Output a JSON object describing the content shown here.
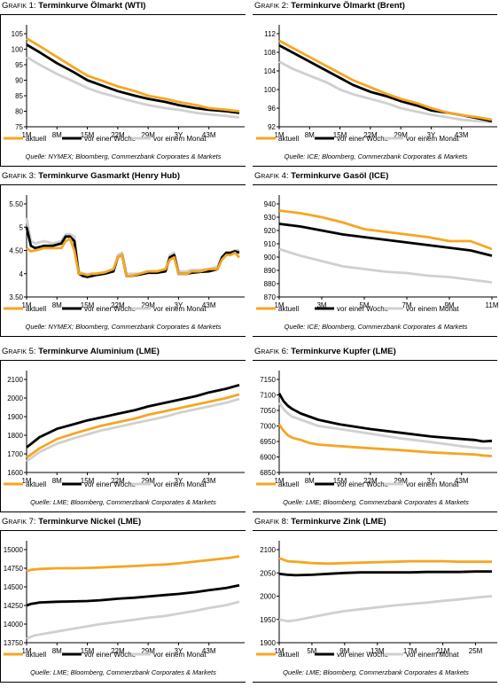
{
  "colors": {
    "aktuell": "#F5A623",
    "week": "#000000",
    "month": "#D0D0D0"
  },
  "legend": {
    "s1": "aktuell",
    "s2": "vor einer Woche",
    "s3": "vor einem Monat"
  },
  "panels": [
    {
      "prefix": "Grafik 1:",
      "title": "Terminkurve Ölmarkt (WTI)",
      "source": "Quelle: NYMEX; Bloomberg, Commerzbank Corporates & Markets"
    },
    {
      "prefix": "Grafik 2:",
      "title": "Terminkurve Ölmarkt (Brent)",
      "source": "Quelle: ICE; Bloomberg, Commerzbank Corporates & Markets"
    },
    {
      "prefix": "Grafik 3:",
      "title": "Terminkurve Gasmarkt (Henry Hub)",
      "source": "Quelle: NYMEX; Bloomberg, Commerzbank Corporates & Markets"
    },
    {
      "prefix": "Grafik 4:",
      "title": "Terminkurve Gasöl (ICE)",
      "source": "Quelle: ICE; Bloomberg, Commerzbank Corporates & Markets"
    },
    {
      "prefix": "Grafik 5:",
      "title": "Terminkurve Aluminium (LME)",
      "source": "Quelle: LME; Bloomberg, Commerzbank Corporates & Markets"
    },
    {
      "prefix": "Grafik 6:",
      "title": "Terminkurve Kupfer (LME)",
      "source": "Quelle: LME; Bloomberg, Commerzbank Corporates & Markets"
    },
    {
      "prefix": "Grafik 7:",
      "title": "Terminkurve Nickel (LME)",
      "source": "Quelle: LME; Bloomberg, Commerzbank Corporates & Markets"
    },
    {
      "prefix": "Grafik 8:",
      "title": "Terminkurve Zink (LME)",
      "source": "Quelle: LME; Bloomberg, Commerzbank Corporates & Markets"
    }
  ],
  "chart_data": [
    {
      "type": "line",
      "title": "Terminkurve Ölmarkt (WTI)",
      "ylim": [
        75,
        105
      ],
      "yticks": [
        75,
        80,
        85,
        90,
        95,
        100,
        105
      ],
      "x": [
        1,
        4,
        8,
        12,
        15,
        18,
        22,
        26,
        29,
        33,
        36,
        40,
        43,
        47,
        50
      ],
      "xticks": [
        {
          "x": 1,
          "label": "1M"
        },
        {
          "x": 8,
          "label": "8M"
        },
        {
          "x": 15,
          "label": "15M"
        },
        {
          "x": 22,
          "label": "22M"
        },
        {
          "x": 29,
          "label": "29M"
        },
        {
          "x": 36,
          "label": "3Y"
        },
        {
          "x": 43,
          "label": "43M"
        }
      ],
      "series": [
        {
          "name": "aktuell",
          "values": [
            103.5,
            101,
            97.5,
            94,
            91.5,
            90,
            88,
            86.5,
            85,
            84,
            83,
            82,
            81,
            80.5,
            80
          ]
        },
        {
          "name": "vor einer Woche",
          "values": [
            101.5,
            99,
            95.5,
            92.5,
            90,
            88.5,
            86.5,
            85,
            84,
            83,
            82,
            81,
            80.5,
            80,
            79.5
          ]
        },
        {
          "name": "vor einem Monat",
          "values": [
            97.5,
            95,
            92,
            89.5,
            87.5,
            86,
            84.5,
            83,
            82,
            81,
            80.5,
            79.5,
            79,
            78.5,
            78
          ]
        }
      ]
    },
    {
      "type": "line",
      "title": "Terminkurve Ölmarkt (Brent)",
      "ylim": [
        92,
        112
      ],
      "yticks": [
        92,
        96,
        100,
        104,
        108,
        112
      ],
      "x": [
        1,
        4,
        8,
        12,
        15,
        18,
        22,
        26,
        29,
        33,
        36,
        40,
        43,
        47,
        50
      ],
      "xticks": [
        {
          "x": 1,
          "label": "1M"
        },
        {
          "x": 8,
          "label": "8M"
        },
        {
          "x": 15,
          "label": "15M"
        },
        {
          "x": 22,
          "label": "22M"
        },
        {
          "x": 29,
          "label": "29M"
        },
        {
          "x": 36,
          "label": "3Y"
        },
        {
          "x": 43,
          "label": "43M"
        }
      ],
      "series": [
        {
          "name": "aktuell",
          "values": [
            110.5,
            109,
            107,
            105,
            103.5,
            102,
            100.5,
            99,
            98,
            97,
            96,
            95,
            94.5,
            94,
            93.5
          ]
        },
        {
          "name": "vor einer Woche",
          "values": [
            109.5,
            108,
            106,
            104,
            102.5,
            101,
            99.5,
            98.5,
            97.5,
            96.5,
            95.5,
            95,
            94.5,
            93.8,
            93.2
          ]
        },
        {
          "name": "vor einem Monat",
          "values": [
            106,
            104.5,
            103,
            101.5,
            100,
            99,
            98,
            97,
            96,
            95.2,
            94.6,
            94,
            93.5,
            93.2,
            93
          ]
        }
      ]
    },
    {
      "type": "line",
      "title": "Terminkurve Gasmarkt (Henry Hub)",
      "ylim": [
        3.5,
        5.5
      ],
      "yticks": [
        3.5,
        4.0,
        4.5,
        5.0,
        5.5
      ],
      "x": [
        1,
        2,
        3,
        5,
        7,
        9,
        10,
        11,
        12,
        13,
        14,
        15,
        16,
        17,
        19,
        21,
        22,
        23,
        24,
        25,
        27,
        29,
        31,
        33,
        34,
        35,
        36,
        37,
        38,
        39,
        41,
        43,
        45,
        46,
        47,
        48,
        49,
        50
      ],
      "xticks": [
        {
          "x": 1,
          "label": "1M"
        },
        {
          "x": 8,
          "label": "8M"
        },
        {
          "x": 15,
          "label": "15M"
        },
        {
          "x": 22,
          "label": "22M"
        },
        {
          "x": 29,
          "label": "29M"
        },
        {
          "x": 36,
          "label": "3Y"
        },
        {
          "x": 43,
          "label": "43M"
        }
      ],
      "series": [
        {
          "name": "aktuell",
          "values": [
            4.55,
            4.48,
            4.5,
            4.55,
            4.55,
            4.55,
            4.7,
            4.75,
            4.5,
            4.0,
            4.0,
            3.97,
            4.0,
            4.0,
            4.03,
            4.1,
            4.35,
            4.4,
            3.95,
            3.95,
            4.0,
            4.05,
            4.05,
            4.1,
            4.3,
            4.35,
            4.0,
            4.0,
            4.0,
            4.05,
            4.05,
            4.1,
            4.1,
            4.3,
            4.4,
            4.4,
            4.45,
            4.35
          ]
        },
        {
          "name": "vor einer Woche",
          "values": [
            5.0,
            4.6,
            4.55,
            4.6,
            4.6,
            4.65,
            4.8,
            4.8,
            4.7,
            4.0,
            3.95,
            3.93,
            3.95,
            3.97,
            4.0,
            4.05,
            4.35,
            4.4,
            3.95,
            3.95,
            3.98,
            4.02,
            4.02,
            4.05,
            4.35,
            4.4,
            4.0,
            4.0,
            4.0,
            4.02,
            4.04,
            4.05,
            4.1,
            4.35,
            4.45,
            4.45,
            4.48,
            4.45
          ]
        },
        {
          "name": "vor einem Monat",
          "values": [
            5.2,
            4.7,
            4.65,
            4.7,
            4.65,
            4.7,
            4.85,
            4.85,
            4.8,
            4.05,
            4.0,
            3.98,
            4.0,
            4.0,
            4.03,
            4.05,
            4.4,
            4.45,
            4.0,
            4.0,
            4.0,
            4.05,
            4.05,
            4.08,
            4.4,
            4.45,
            4.05,
            4.05,
            4.05,
            4.08,
            4.08,
            4.1,
            4.15,
            4.35,
            4.45,
            4.45,
            4.5,
            4.5
          ]
        }
      ]
    },
    {
      "type": "line",
      "title": "Terminkurve Gasöl (ICE)",
      "ylim": [
        870,
        940
      ],
      "yticks": [
        870,
        880,
        890,
        900,
        910,
        920,
        930,
        940
      ],
      "x": [
        1,
        2,
        3,
        4,
        5,
        6,
        7,
        8,
        9,
        10,
        11
      ],
      "xticks": [
        {
          "x": 1,
          "label": "1M"
        },
        {
          "x": 3,
          "label": "3M"
        },
        {
          "x": 5,
          "label": "5M"
        },
        {
          "x": 7,
          "label": "7M"
        },
        {
          "x": 9,
          "label": "9M"
        },
        {
          "x": 11,
          "label": "11M"
        }
      ],
      "series": [
        {
          "name": "aktuell",
          "values": [
            935,
            933,
            930,
            926,
            921,
            919,
            917,
            915,
            912,
            912,
            906
          ]
        },
        {
          "name": "vor einer Woche",
          "values": [
            925,
            923,
            920,
            917,
            915,
            913,
            911,
            909,
            907,
            905,
            901
          ]
        },
        {
          "name": "vor einem Monat",
          "values": [
            906,
            901,
            897,
            893,
            891,
            889,
            888,
            886,
            885,
            883,
            881
          ]
        }
      ]
    },
    {
      "type": "line",
      "title": "Terminkurve Aluminium (LME)",
      "ylim": [
        1600,
        2100
      ],
      "yticks": [
        1600,
        1700,
        1800,
        1900,
        2000,
        2100
      ],
      "x": [
        1,
        4,
        8,
        12,
        15,
        18,
        22,
        26,
        29,
        33,
        36,
        40,
        43,
        47,
        50
      ],
      "xticks": [
        {
          "x": 1,
          "label": "1M"
        },
        {
          "x": 8,
          "label": "8M"
        },
        {
          "x": 15,
          "label": "15M"
        },
        {
          "x": 22,
          "label": "22M"
        },
        {
          "x": 29,
          "label": "29M"
        },
        {
          "x": 36,
          "label": "3Y"
        },
        {
          "x": 43,
          "label": "43M"
        }
      ],
      "series": [
        {
          "name": "aktuell",
          "values": [
            1680,
            1730,
            1780,
            1810,
            1830,
            1850,
            1870,
            1890,
            1910,
            1930,
            1945,
            1965,
            1980,
            2000,
            2020
          ]
        },
        {
          "name": "vor einer Woche",
          "values": [
            1735,
            1790,
            1835,
            1860,
            1880,
            1895,
            1915,
            1935,
            1955,
            1975,
            1990,
            2010,
            2030,
            2050,
            2070
          ]
        },
        {
          "name": "vor einem Monat",
          "values": [
            1660,
            1710,
            1755,
            1785,
            1805,
            1825,
            1845,
            1865,
            1880,
            1900,
            1920,
            1940,
            1955,
            1975,
            1995
          ]
        }
      ]
    },
    {
      "type": "line",
      "title": "Terminkurve Kupfer (LME)",
      "ylim": [
        6850,
        7150
      ],
      "yticks": [
        6850,
        6900,
        6950,
        7000,
        7050,
        7100,
        7150
      ],
      "x": [
        1,
        2,
        3,
        4,
        6,
        8,
        10,
        15,
        22,
        29,
        36,
        43,
        46,
        48,
        50
      ],
      "xticks": [
        {
          "x": 1,
          "label": "1M"
        },
        {
          "x": 8,
          "label": "8M"
        },
        {
          "x": 15,
          "label": "15M"
        },
        {
          "x": 22,
          "label": "22M"
        },
        {
          "x": 29,
          "label": "29M"
        },
        {
          "x": 36,
          "label": "3Y"
        },
        {
          "x": 43,
          "label": "43M"
        }
      ],
      "series": [
        {
          "name": "aktuell",
          "values": [
            7005,
            6985,
            6970,
            6962,
            6955,
            6945,
            6940,
            6935,
            6928,
            6922,
            6915,
            6910,
            6908,
            6905,
            6903
          ]
        },
        {
          "name": "vor einer Woche",
          "values": [
            7105,
            7080,
            7065,
            7055,
            7040,
            7030,
            7020,
            7005,
            6990,
            6978,
            6966,
            6958,
            6955,
            6950,
            6952
          ]
        },
        {
          "name": "vor einem Monat",
          "values": [
            7075,
            7055,
            7040,
            7030,
            7020,
            7010,
            7000,
            6990,
            6975,
            6960,
            6948,
            6935,
            6930,
            6928,
            6928
          ]
        }
      ]
    },
    {
      "type": "line",
      "title": "Terminkurve Nickel (LME)",
      "ylim": [
        13750,
        15000
      ],
      "yticks": [
        13750,
        14000,
        14250,
        14500,
        14750,
        15000
      ],
      "x": [
        1,
        2,
        3,
        4,
        8,
        12,
        15,
        18,
        22,
        26,
        29,
        33,
        36,
        40,
        43,
        47,
        50
      ],
      "xticks": [
        {
          "x": 1,
          "label": "1M"
        },
        {
          "x": 8,
          "label": "8M"
        },
        {
          "x": 15,
          "label": "15M"
        },
        {
          "x": 22,
          "label": "22M"
        },
        {
          "x": 29,
          "label": "29M"
        },
        {
          "x": 36,
          "label": "3Y"
        },
        {
          "x": 43,
          "label": "43M"
        }
      ],
      "series": [
        {
          "name": "aktuell",
          "values": [
            14710,
            14730,
            14735,
            14740,
            14750,
            14750,
            14755,
            14760,
            14770,
            14780,
            14790,
            14800,
            14815,
            14840,
            14860,
            14885,
            14910
          ]
        },
        {
          "name": "vor einer Woche",
          "values": [
            14250,
            14270,
            14280,
            14290,
            14300,
            14305,
            14310,
            14320,
            14340,
            14355,
            14370,
            14390,
            14405,
            14430,
            14455,
            14485,
            14520
          ]
        },
        {
          "name": "vor einem Monat",
          "values": [
            13800,
            13830,
            13850,
            13860,
            13900,
            13940,
            13970,
            14000,
            14030,
            14060,
            14085,
            14110,
            14140,
            14180,
            14215,
            14255,
            14300
          ]
        }
      ]
    },
    {
      "type": "line",
      "title": "Terminkurve Zink (LME)",
      "ylim": [
        1900,
        2100
      ],
      "yticks": [
        1900,
        1950,
        2000,
        2050,
        2100
      ],
      "x": [
        1,
        2,
        3,
        5,
        7,
        9,
        11,
        13,
        15,
        17,
        19,
        21,
        23,
        25,
        27
      ],
      "xticks": [
        {
          "x": 1,
          "label": "1M"
        },
        {
          "x": 5,
          "label": "5M"
        },
        {
          "x": 9,
          "label": "9M"
        },
        {
          "x": 13,
          "label": "13M"
        },
        {
          "x": 17,
          "label": "17M"
        },
        {
          "x": 21,
          "label": "21M"
        },
        {
          "x": 25,
          "label": "25M"
        }
      ],
      "series": [
        {
          "name": "aktuell",
          "values": [
            2082,
            2075,
            2074,
            2071,
            2070,
            2071,
            2072,
            2073,
            2074,
            2075,
            2075,
            2075,
            2074,
            2074,
            2074
          ]
        },
        {
          "name": "vor einer Woche",
          "values": [
            2048,
            2046,
            2045,
            2046,
            2048,
            2050,
            2051,
            2051,
            2051,
            2051,
            2052,
            2052,
            2052,
            2053,
            2053
          ]
        },
        {
          "name": "vor einem Monat",
          "values": [
            1950,
            1946,
            1948,
            1955,
            1962,
            1968,
            1972,
            1976,
            1980,
            1983,
            1986,
            1990,
            1993,
            1997,
            2000
          ]
        }
      ]
    }
  ]
}
